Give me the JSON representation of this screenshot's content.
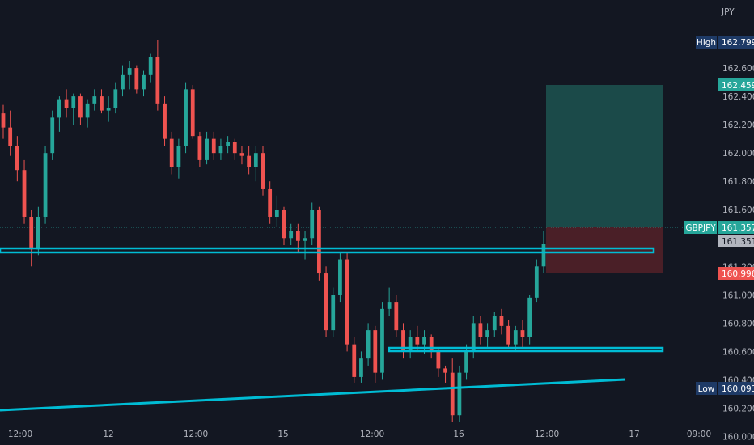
{
  "chart_data": {
    "type": "candlestick",
    "symbol": "GBPJPY",
    "currency": "JPY",
    "y_range": [
      159.94,
      163.08
    ],
    "y_ticks": [
      "162.600",
      "162.400",
      "162.200",
      "162.000",
      "161.800",
      "161.600",
      "161.400",
      "161.200",
      "161.000",
      "160.800",
      "160.600",
      "160.400",
      "160.200",
      "160.000"
    ],
    "x_ticks": [
      "12:00",
      "12",
      "12:00",
      "15",
      "12:00",
      "16",
      "12:00",
      "17",
      "09:00"
    ],
    "series": [
      {
        "name": "GBPJPY",
        "values": [
          [
            162.28,
            162.34,
            162.1,
            162.18
          ],
          [
            162.18,
            162.3,
            161.98,
            162.05
          ],
          [
            162.05,
            162.12,
            161.8,
            161.88
          ],
          [
            161.88,
            161.95,
            161.5,
            161.55
          ],
          [
            161.55,
            161.6,
            161.2,
            161.32
          ],
          [
            161.32,
            161.62,
            161.28,
            161.55
          ],
          [
            161.55,
            162.05,
            161.5,
            162.0
          ],
          [
            162.0,
            162.3,
            161.95,
            162.25
          ],
          [
            162.25,
            162.4,
            162.15,
            162.38
          ],
          [
            162.38,
            162.45,
            162.25,
            162.32
          ],
          [
            162.32,
            162.42,
            162.2,
            162.4
          ],
          [
            162.4,
            162.42,
            162.2,
            162.25
          ],
          [
            162.25,
            162.38,
            162.18,
            162.35
          ],
          [
            162.35,
            162.45,
            162.3,
            162.4
          ],
          [
            162.4,
            162.45,
            162.28,
            162.3
          ],
          [
            162.3,
            162.4,
            162.22,
            162.32
          ],
          [
            162.32,
            162.5,
            162.28,
            162.45
          ],
          [
            162.45,
            162.62,
            162.4,
            162.55
          ],
          [
            162.55,
            162.65,
            162.45,
            162.6
          ],
          [
            162.6,
            162.62,
            162.42,
            162.45
          ],
          [
            162.45,
            162.58,
            162.4,
            162.55
          ],
          [
            162.55,
            162.7,
            162.5,
            162.68
          ],
          [
            162.68,
            162.8,
            162.3,
            162.35
          ],
          [
            162.35,
            162.4,
            162.05,
            162.1
          ],
          [
            162.1,
            162.15,
            161.85,
            161.9
          ],
          [
            161.9,
            162.1,
            161.82,
            162.05
          ],
          [
            162.05,
            162.5,
            162.0,
            162.45
          ],
          [
            162.45,
            162.48,
            162.1,
            162.12
          ],
          [
            162.12,
            162.15,
            161.9,
            161.95
          ],
          [
            161.95,
            162.15,
            161.92,
            162.1
          ],
          [
            162.1,
            162.15,
            161.95,
            162.0
          ],
          [
            162.0,
            162.1,
            161.95,
            162.05
          ],
          [
            162.05,
            162.12,
            162.0,
            162.08
          ],
          [
            162.08,
            162.1,
            161.95,
            162.0
          ],
          [
            162.0,
            162.05,
            161.92,
            161.98
          ],
          [
            161.98,
            162.05,
            161.85,
            161.9
          ],
          [
            161.9,
            162.05,
            161.8,
            162.0
          ],
          [
            162.0,
            162.05,
            161.7,
            161.75
          ],
          [
            161.75,
            161.8,
            161.5,
            161.55
          ],
          [
            161.55,
            161.7,
            161.48,
            161.6
          ],
          [
            161.6,
            161.62,
            161.35,
            161.4
          ],
          [
            161.4,
            161.5,
            161.35,
            161.45
          ],
          [
            161.45,
            161.5,
            161.3,
            161.38
          ],
          [
            161.38,
            161.45,
            161.25,
            161.4
          ],
          [
            161.4,
            161.65,
            161.35,
            161.6
          ],
          [
            161.6,
            161.62,
            161.1,
            161.15
          ],
          [
            161.15,
            161.2,
            160.7,
            160.75
          ],
          [
            160.75,
            161.05,
            160.7,
            161.0
          ],
          [
            161.0,
            161.3,
            160.95,
            161.25
          ],
          [
            161.25,
            161.3,
            160.6,
            160.65
          ],
          [
            160.65,
            160.7,
            160.38,
            160.42
          ],
          [
            160.42,
            160.6,
            160.38,
            160.55
          ],
          [
            160.55,
            160.8,
            160.5,
            160.75
          ],
          [
            160.75,
            160.78,
            160.38,
            160.45
          ],
          [
            160.45,
            160.95,
            160.4,
            160.9
          ],
          [
            160.9,
            161.05,
            160.85,
            160.95
          ],
          [
            160.95,
            161.0,
            160.7,
            160.75
          ],
          [
            160.75,
            160.8,
            160.55,
            160.6
          ],
          [
            160.6,
            160.75,
            160.55,
            160.7
          ],
          [
            160.7,
            160.78,
            160.6,
            160.65
          ],
          [
            160.65,
            160.75,
            160.58,
            160.7
          ],
          [
            160.7,
            160.72,
            160.55,
            160.6
          ],
          [
            160.6,
            160.62,
            160.42,
            160.48
          ],
          [
            160.48,
            160.5,
            160.38,
            160.45
          ],
          [
            160.45,
            160.55,
            160.1,
            160.15
          ],
          [
            160.15,
            160.5,
            160.1,
            160.45
          ],
          [
            160.45,
            160.65,
            160.4,
            160.6
          ],
          [
            160.6,
            160.85,
            160.55,
            160.8
          ],
          [
            160.8,
            160.85,
            160.65,
            160.7
          ],
          [
            160.7,
            160.8,
            160.62,
            160.75
          ],
          [
            160.75,
            160.88,
            160.7,
            160.85
          ],
          [
            160.85,
            160.9,
            160.72,
            160.78
          ],
          [
            160.78,
            160.82,
            160.62,
            160.65
          ],
          [
            160.65,
            160.78,
            160.6,
            160.75
          ],
          [
            160.75,
            160.82,
            160.62,
            160.7
          ],
          [
            160.7,
            161.0,
            160.65,
            160.98
          ],
          [
            160.98,
            161.25,
            160.95,
            161.2
          ],
          [
            161.2,
            161.45,
            161.15,
            161.36
          ]
        ]
      }
    ],
    "levels": {
      "high_label": "High",
      "high_value": "162.799",
      "low_label": "Low",
      "low_value": "160.093",
      "target_value": "162.459",
      "price_symbol": "GBPJPY",
      "price_value": "161.357",
      "bid_value": "161.351",
      "stop_value": "160.996"
    },
    "colors": {
      "background": "#131722",
      "up": "#26a69a",
      "down": "#ef5350",
      "line": "#00bcd4",
      "text": "#b2b5be",
      "target_zone": "#1b4a49",
      "stop_zone": "#4a1f27"
    }
  }
}
